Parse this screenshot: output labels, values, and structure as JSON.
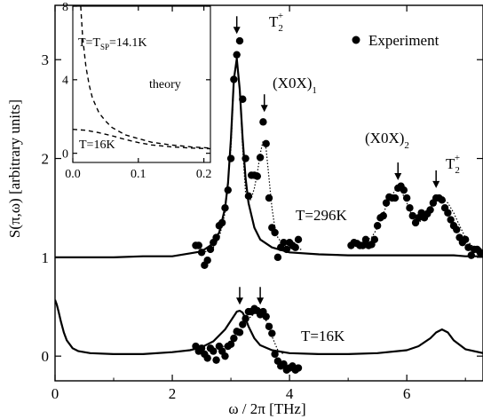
{
  "chart_data": [
    {
      "type": "line",
      "xlabel": "ω / 2π  [THz]",
      "ylabel": "S(π,ω)  [arbitrary units]",
      "xlim": [
        0,
        7.3
      ],
      "ylim": [
        -0.25,
        3.55
      ],
      "xticks": [
        0,
        2,
        4,
        6
      ],
      "yticks": [
        0,
        1,
        2,
        3
      ],
      "grid": false,
      "legend": {
        "position": "top-right",
        "label": "Experiment"
      },
      "annotations": {
        "t2_top": "T",
        "t2_top_sub": "2",
        "t2_top_sup": "+",
        "x0x1": "(X0X)",
        "x0x1_sub": "1",
        "x0x2": "(X0X)",
        "x0x2_sub": "2",
        "t2_right": "T",
        "t2_right_sub": "2",
        "t2_right_sup": "+",
        "t296": "T=296K",
        "t16": "T=16K"
      },
      "series": [
        {
          "name": "Experiment",
          "style": "points",
          "x": [
            2.4,
            2.45,
            2.5,
            2.55,
            2.6,
            2.65,
            2.7,
            2.75,
            2.8,
            2.85,
            2.9,
            2.95,
            3.0,
            3.05,
            3.1,
            3.15,
            3.2,
            3.25,
            3.3,
            3.35,
            3.4,
            3.45,
            3.5,
            3.55,
            3.6,
            3.65,
            3.7,
            3.75,
            3.8,
            3.85,
            3.9,
            3.95,
            4.0,
            4.05,
            4.1,
            4.15,
            5.05,
            5.1,
            5.15,
            5.2,
            5.25,
            5.3,
            5.35,
            5.4,
            5.45,
            5.5,
            5.55,
            5.6,
            5.65,
            5.7,
            5.75,
            5.8,
            5.85,
            5.9,
            5.95,
            6.0,
            6.05,
            6.1,
            6.15,
            6.2,
            6.25,
            6.3,
            6.35,
            6.4,
            6.45,
            6.5,
            6.55,
            6.6,
            6.65,
            6.7,
            6.75,
            6.8,
            6.85,
            6.9,
            6.95,
            7.0,
            7.05,
            7.1,
            7.15,
            7.2,
            7.25
          ],
          "y": [
            1.12,
            1.12,
            1.05,
            0.92,
            0.97,
            1.08,
            1.15,
            1.2,
            1.32,
            1.35,
            1.5,
            1.68,
            2.0,
            2.8,
            3.05,
            3.19,
            2.6,
            2.0,
            1.62,
            1.83,
            1.83,
            1.82,
            2.01,
            2.37,
            2.15,
            1.6,
            1.3,
            1.25,
            1.0,
            1.1,
            1.15,
            1.08,
            1.15,
            1.12,
            1.1,
            1.18,
            1.12,
            1.15,
            1.14,
            1.12,
            1.12,
            1.18,
            1.12,
            1.13,
            1.18,
            1.32,
            1.4,
            1.42,
            1.55,
            1.61,
            1.6,
            1.6,
            1.7,
            1.72,
            1.68,
            1.6,
            1.5,
            1.42,
            1.35,
            1.4,
            1.45,
            1.4,
            1.44,
            1.48,
            1.55,
            1.6,
            1.6,
            1.58,
            1.5,
            1.45,
            1.38,
            1.32,
            1.28,
            1.2,
            1.15,
            1.18,
            1.1,
            1.02,
            1.08,
            1.08,
            1.05
          ]
        },
        {
          "name": "Experiment",
          "style": "points",
          "x": [
            2.4,
            2.45,
            2.5,
            2.55,
            2.6,
            2.65,
            2.7,
            2.75,
            2.8,
            2.85,
            2.9,
            2.95,
            3.0,
            3.05,
            3.1,
            3.15,
            3.2,
            3.25,
            3.3,
            3.35,
            3.4,
            3.45,
            3.5,
            3.55,
            3.6,
            3.65,
            3.7,
            3.75,
            3.8,
            3.85,
            3.9,
            3.95,
            4.0,
            4.05,
            4.1,
            4.15
          ],
          "y": [
            0.1,
            0.05,
            0.08,
            0.02,
            -0.02,
            0.08,
            0.05,
            -0.04,
            0.1,
            0.05,
            0.0,
            0.1,
            0.12,
            0.18,
            0.25,
            0.24,
            0.32,
            0.38,
            0.45,
            0.45,
            0.48,
            0.46,
            0.42,
            0.45,
            0.4,
            0.3,
            0.23,
            0.02,
            -0.05,
            -0.1,
            -0.08,
            -0.14,
            -0.12,
            -0.1,
            -0.14,
            -0.12
          ]
        },
        {
          "style": "solid",
          "x": [
            0.0,
            0.05,
            0.1,
            0.15,
            0.2,
            0.3,
            0.4,
            0.6,
            0.8,
            1.0,
            1.5,
            2.0,
            2.3,
            2.5,
            2.65,
            2.8,
            2.9,
            2.95,
            3.0,
            3.05,
            3.1,
            3.15,
            3.2,
            3.25,
            3.3,
            3.4,
            3.5,
            3.7,
            4.0,
            4.5,
            5.0,
            5.5,
            6.0,
            6.3,
            6.5,
            6.6,
            6.7,
            6.8,
            7.0,
            7.3
          ],
          "y": [
            1.0,
            1.0,
            1.0,
            1.0,
            1.0,
            1.0,
            1.0,
            1.0,
            1.0,
            1.0,
            1.01,
            1.01,
            1.04,
            1.06,
            1.12,
            1.25,
            1.5,
            1.75,
            2.2,
            2.8,
            3.01,
            2.7,
            2.2,
            1.8,
            1.55,
            1.3,
            1.18,
            1.1,
            1.05,
            1.03,
            1.02,
            1.02,
            1.02,
            1.02,
            1.02,
            1.02,
            1.02,
            1.02,
            1.01,
            1.01
          ]
        },
        {
          "style": "dotted",
          "x": [
            2.4,
            2.6,
            2.7,
            2.8,
            2.9,
            3.0,
            3.05,
            3.1,
            3.15,
            3.2,
            3.25,
            3.3,
            3.35,
            3.4,
            3.45,
            3.5,
            3.55,
            3.6,
            3.65,
            3.7,
            3.75,
            3.8,
            3.9,
            4.0,
            4.1,
            4.2
          ],
          "y": [
            1.05,
            1.06,
            1.1,
            1.2,
            1.45,
            2.1,
            2.75,
            3.02,
            2.7,
            2.1,
            1.65,
            1.55,
            1.6,
            1.7,
            1.85,
            2.05,
            2.18,
            2.1,
            1.8,
            1.5,
            1.3,
            1.2,
            1.12,
            1.09,
            1.08,
            1.08
          ]
        },
        {
          "style": "dotted",
          "x": [
            5.0,
            5.2,
            5.4,
            5.5,
            5.6,
            5.7,
            5.8,
            5.85,
            5.9,
            6.0,
            6.1,
            6.2,
            6.3,
            6.4,
            6.5,
            6.6,
            6.7,
            6.8,
            6.9,
            7.0,
            7.1,
            7.3
          ],
          "y": [
            1.12,
            1.14,
            1.2,
            1.3,
            1.45,
            1.58,
            1.68,
            1.7,
            1.68,
            1.55,
            1.4,
            1.35,
            1.4,
            1.5,
            1.58,
            1.6,
            1.55,
            1.45,
            1.32,
            1.2,
            1.12,
            1.08
          ]
        },
        {
          "style": "solid",
          "x": [
            0.0,
            0.03,
            0.06,
            0.1,
            0.15,
            0.2,
            0.3,
            0.4,
            0.6,
            1.0,
            1.5,
            2.0,
            2.3,
            2.5,
            2.7,
            2.9,
            3.0,
            3.1,
            3.15,
            3.2,
            3.25,
            3.3,
            3.4,
            3.5,
            3.7,
            4.0,
            4.5,
            5.0,
            5.5,
            6.0,
            6.2,
            6.4,
            6.5,
            6.6,
            6.7,
            6.8,
            7.0,
            7.3
          ],
          "y": [
            0.57,
            0.52,
            0.45,
            0.35,
            0.24,
            0.16,
            0.08,
            0.05,
            0.03,
            0.02,
            0.02,
            0.04,
            0.06,
            0.09,
            0.15,
            0.27,
            0.36,
            0.45,
            0.46,
            0.44,
            0.38,
            0.3,
            0.18,
            0.11,
            0.06,
            0.03,
            0.02,
            0.02,
            0.03,
            0.06,
            0.1,
            0.18,
            0.24,
            0.27,
            0.24,
            0.16,
            0.07,
            0.03
          ]
        },
        {
          "style": "dotted",
          "x": [
            2.4,
            2.6,
            2.8,
            3.0,
            3.1,
            3.2,
            3.3,
            3.4,
            3.5,
            3.55,
            3.6,
            3.7,
            3.8,
            3.9
          ],
          "y": [
            0.04,
            0.05,
            0.08,
            0.13,
            0.2,
            0.3,
            0.38,
            0.43,
            0.44,
            0.42,
            0.36,
            0.2,
            0.06,
            0.02
          ]
        }
      ],
      "arrows": [
        {
          "x": 3.1,
          "tip_y": 3.26
        },
        {
          "x": 3.57,
          "tip_y": 2.47
        },
        {
          "x": 5.85,
          "tip_y": 1.78
        },
        {
          "x": 6.5,
          "tip_y": 1.7
        },
        {
          "x": 3.15,
          "tip_y": 0.52
        },
        {
          "x": 3.5,
          "tip_y": 0.52
        }
      ]
    },
    {
      "type": "line",
      "title": "",
      "xlim": [
        0,
        0.21
      ],
      "ylim": [
        -0.5,
        8
      ],
      "xticks": [
        0.0,
        0.1,
        0.2
      ],
      "yticks": [
        0,
        4,
        8
      ],
      "annotations": {
        "tsp_main": "T=T",
        "tsp_sub": "SP",
        "tsp_val": "=14.1K",
        "theory": "theory",
        "t16": "T=16K"
      },
      "series": [
        {
          "style": "dashed",
          "x": [
            0.012,
            0.015,
            0.02,
            0.025,
            0.03,
            0.04,
            0.05,
            0.06,
            0.08,
            0.1,
            0.12,
            0.15,
            0.18,
            0.21
          ],
          "y": [
            8.0,
            6.3,
            4.7,
            3.7,
            3.0,
            2.2,
            1.75,
            1.4,
            1.0,
            0.8,
            0.6,
            0.45,
            0.35,
            0.28
          ]
        },
        {
          "style": "dashed",
          "x": [
            0.0,
            0.02,
            0.04,
            0.06,
            0.08,
            0.1,
            0.12,
            0.15,
            0.18,
            0.21
          ],
          "y": [
            1.3,
            1.25,
            1.12,
            0.95,
            0.75,
            0.58,
            0.45,
            0.35,
            0.28,
            0.25
          ]
        }
      ]
    }
  ]
}
